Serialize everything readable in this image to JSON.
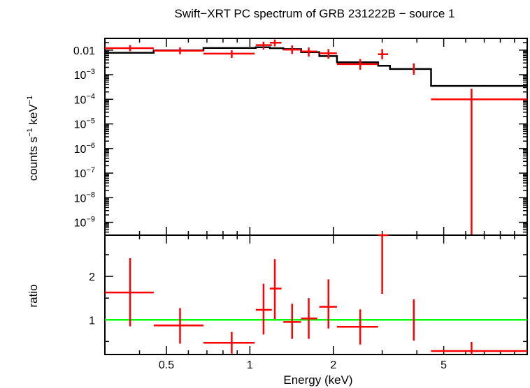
{
  "chart_data": {
    "title": "Swift−XRT PC spectrum of GRB 231222B − source 1",
    "xlabel": "Energy (keV)",
    "x_scale": "log",
    "xlim": [
      0.3,
      10.0
    ],
    "x_ticks": [
      {
        "value": 0.5,
        "label": "0.5"
      },
      {
        "value": 1,
        "label": "1"
      },
      {
        "value": 2,
        "label": "2"
      },
      {
        "value": 5,
        "label": "5"
      }
    ],
    "panels": [
      {
        "type": "scatter",
        "ylabel_base": "counts s",
        "ylabel_sup1": "−1",
        "ylabel_mid": " keV",
        "ylabel_sup2": "−1",
        "y_scale": "log",
        "ylim": [
          3e-10,
          0.03
        ],
        "y_ticks": [
          {
            "value": 0.01,
            "base": "0.01",
            "exp": ""
          },
          {
            "value": 0.001,
            "base": "10",
            "exp": "−3"
          },
          {
            "value": 0.0001,
            "base": "10",
            "exp": "−4"
          },
          {
            "value": 1e-05,
            "base": "10",
            "exp": "−5"
          },
          {
            "value": 1e-06,
            "base": "10",
            "exp": "−6"
          },
          {
            "value": 1e-07,
            "base": "10",
            "exp": "−7"
          },
          {
            "value": 1e-08,
            "base": "10",
            "exp": "−8"
          },
          {
            "value": 1e-09,
            "base": "10",
            "exp": "−9"
          }
        ],
        "data_color": "#ff0000",
        "points": [
          {
            "x": 0.37,
            "xlo": 0.3,
            "xhi": 0.45,
            "y": 0.012,
            "ylo": 0.009,
            "yhi": 0.016
          },
          {
            "x": 0.56,
            "xlo": 0.45,
            "xhi": 0.68,
            "y": 0.0095,
            "ylo": 0.0068,
            "yhi": 0.013
          },
          {
            "x": 0.86,
            "xlo": 0.68,
            "xhi": 1.04,
            "y": 0.0072,
            "ylo": 0.0048,
            "yhi": 0.0098
          },
          {
            "x": 1.12,
            "xlo": 1.05,
            "xhi": 1.2,
            "y": 0.016,
            "ylo": 0.0105,
            "yhi": 0.022
          },
          {
            "x": 1.23,
            "xlo": 1.18,
            "xhi": 1.3,
            "y": 0.02,
            "ylo": 0.0142,
            "yhi": 0.027
          },
          {
            "x": 1.42,
            "xlo": 1.32,
            "xhi": 1.53,
            "y": 0.0105,
            "ylo": 0.007,
            "yhi": 0.0155
          },
          {
            "x": 1.63,
            "xlo": 1.53,
            "xhi": 1.75,
            "y": 0.0088,
            "ylo": 0.0055,
            "yhi": 0.0128
          },
          {
            "x": 1.92,
            "xlo": 1.78,
            "xhi": 2.06,
            "y": 0.0074,
            "ylo": 0.0045,
            "yhi": 0.011
          },
          {
            "x": 2.5,
            "xlo": 2.06,
            "xhi": 2.9,
            "y": 0.0027,
            "ylo": 0.0016,
            "yhi": 0.0043
          },
          {
            "x": 3.0,
            "xlo": 2.9,
            "xhi": 3.15,
            "y": 0.0068,
            "ylo": 0.0042,
            "yhi": 0.011
          },
          {
            "x": 3.9,
            "xlo": 3.9,
            "xhi": 3.9,
            "y": 0.0017,
            "ylo": 0.001,
            "yhi": 0.0029
          },
          {
            "x": 6.3,
            "xlo": 4.5,
            "xhi": 10.0,
            "y": 0.0001,
            "ylo": 3e-10,
            "yhi": 0.00027
          }
        ],
        "model_color": "#000000",
        "model_steps": [
          {
            "x0": 0.3,
            "x1": 0.45,
            "y": 0.0078
          },
          {
            "x0": 0.45,
            "x1": 0.68,
            "y": 0.0098
          },
          {
            "x0": 0.68,
            "x1": 1.05,
            "y": 0.0122
          },
          {
            "x0": 1.05,
            "x1": 1.18,
            "y": 0.013
          },
          {
            "x0": 1.18,
            "x1": 1.32,
            "y": 0.012
          },
          {
            "x0": 1.32,
            "x1": 1.53,
            "y": 0.011
          },
          {
            "x0": 1.53,
            "x1": 1.78,
            "y": 0.0083
          },
          {
            "x0": 1.78,
            "x1": 2.06,
            "y": 0.0057
          },
          {
            "x0": 2.06,
            "x1": 2.9,
            "y": 0.0032
          },
          {
            "x0": 2.9,
            "x1": 3.2,
            "y": 0.0023
          },
          {
            "x0": 3.2,
            "x1": 4.5,
            "y": 0.0017
          },
          {
            "x0": 4.5,
            "x1": 10.0,
            "y": 0.00035
          }
        ]
      },
      {
        "type": "scatter",
        "ylabel": "ratio",
        "y_scale": "linear",
        "ylim": [
          0.2,
          2.95
        ],
        "y_ticks": [
          {
            "value": 1,
            "label": "1"
          },
          {
            "value": 2,
            "label": "2"
          }
        ],
        "data_color": "#ff0000",
        "points": [
          {
            "x": 0.37,
            "xlo": 0.3,
            "xhi": 0.45,
            "y": 1.63,
            "ylo": 0.85,
            "yhi": 2.42
          },
          {
            "x": 0.56,
            "xlo": 0.45,
            "xhi": 0.68,
            "y": 0.87,
            "ylo": 0.45,
            "yhi": 1.27
          },
          {
            "x": 0.86,
            "xlo": 0.68,
            "xhi": 1.04,
            "y": 0.47,
            "ylo": 0.22,
            "yhi": 0.72
          },
          {
            "x": 1.12,
            "xlo": 1.05,
            "xhi": 1.2,
            "y": 1.23,
            "ylo": 0.66,
            "yhi": 1.83
          },
          {
            "x": 1.23,
            "xlo": 1.18,
            "xhi": 1.3,
            "y": 1.72,
            "ylo": 1.02,
            "yhi": 2.4
          },
          {
            "x": 1.42,
            "xlo": 1.32,
            "xhi": 1.53,
            "y": 0.95,
            "ylo": 0.56,
            "yhi": 1.37
          },
          {
            "x": 1.63,
            "xlo": 1.53,
            "xhi": 1.75,
            "y": 1.03,
            "ylo": 0.56,
            "yhi": 1.5
          },
          {
            "x": 1.92,
            "xlo": 1.78,
            "xhi": 2.06,
            "y": 1.3,
            "ylo": 0.8,
            "yhi": 1.93
          },
          {
            "x": 2.5,
            "xlo": 2.06,
            "xhi": 2.9,
            "y": 0.84,
            "ylo": 0.43,
            "yhi": 1.24
          },
          {
            "x": 3.0,
            "xlo": 2.9,
            "xhi": 3.15,
            "y": 2.95,
            "ylo": 1.6,
            "yhi": 2.95
          },
          {
            "x": 3.9,
            "xlo": 3.9,
            "xhi": 3.9,
            "y": 1.0,
            "ylo": 0.52,
            "yhi": 1.47
          },
          {
            "x": 6.3,
            "xlo": 4.5,
            "xhi": 10.0,
            "y": 0.28,
            "ylo": 0.2,
            "yhi": 0.49
          }
        ],
        "reference_line": {
          "y": 1.0,
          "color": "#00ff00"
        }
      }
    ]
  }
}
